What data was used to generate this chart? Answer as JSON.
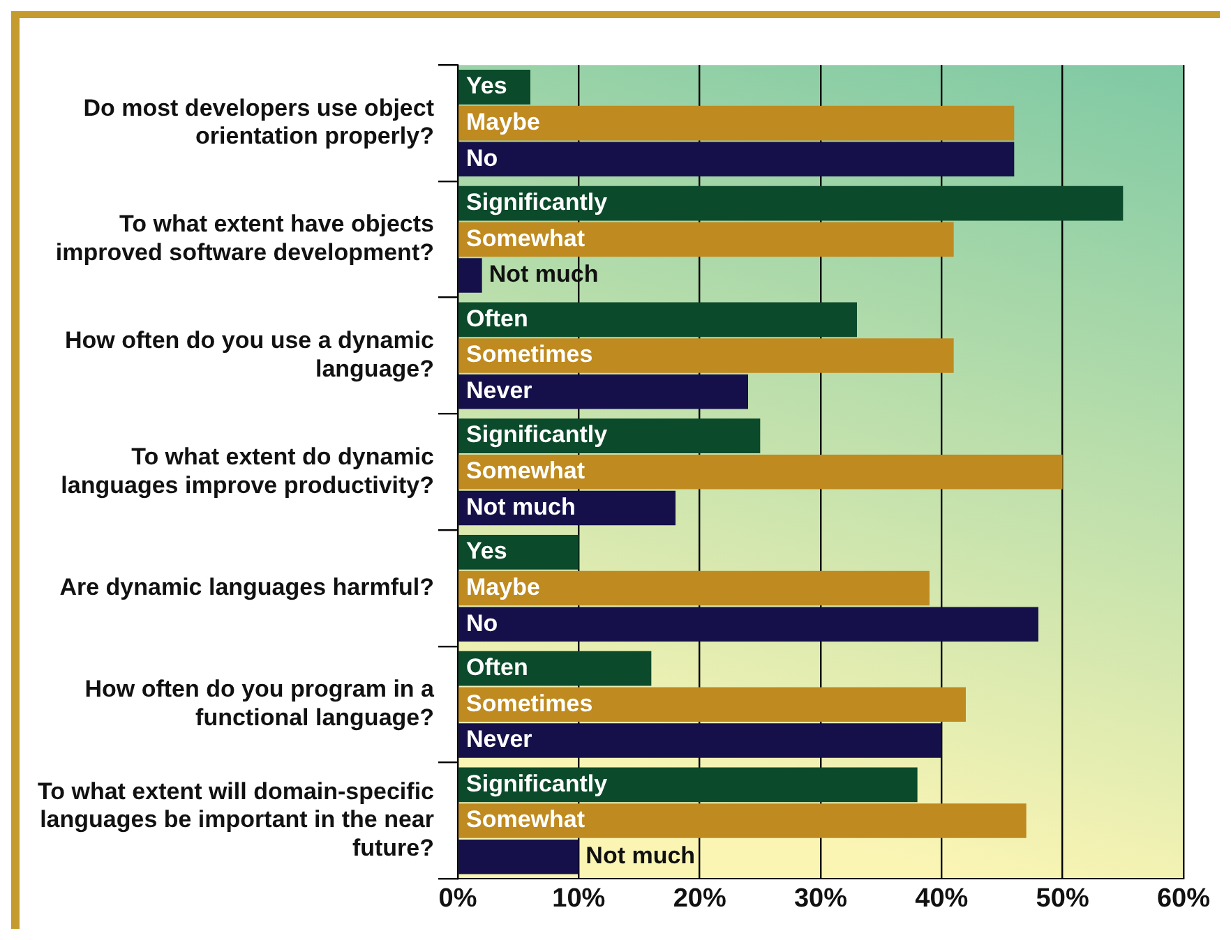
{
  "chart_data": {
    "type": "bar",
    "orientation": "horizontal",
    "categories": [
      "Do most developers use object orientation properly?",
      "To what extent have objects improved software development?",
      "How often do you use a dynamic language?",
      "To what extent do dynamic languages improve productivity?",
      "Are dynamic languages harmful?",
      "How often do you program in a functional language?",
      "To what extent will domain-specific languages be important in the near future?"
    ],
    "series": [
      {
        "color": "#0b4a2a",
        "values": [
          6,
          55,
          33,
          25,
          10,
          16,
          38
        ],
        "value_labels": [
          "Yes",
          "Significantly",
          "Often",
          "Significantly",
          "Yes",
          "Often",
          "Significantly"
        ]
      },
      {
        "color": "#bf8a1f",
        "values": [
          46,
          41,
          41,
          50,
          39,
          42,
          47
        ],
        "value_labels": [
          "Maybe",
          "Somewhat",
          "Sometimes",
          "Somewhat",
          "Maybe",
          "Sometimes",
          "Somewhat"
        ]
      },
      {
        "color": "#15104a",
        "values": [
          46,
          2,
          24,
          18,
          48,
          40,
          10
        ],
        "value_labels": [
          "No",
          "Not much",
          "Never",
          "Not much",
          "No",
          "Never",
          "Not much"
        ]
      }
    ],
    "xlim": [
      0,
      60
    ],
    "xticks": [
      {
        "value": 0,
        "label": "0%"
      },
      {
        "value": 10,
        "label": "10%"
      },
      {
        "value": 20,
        "label": "20%"
      },
      {
        "value": 30,
        "label": "30%"
      },
      {
        "value": 40,
        "label": "40%"
      },
      {
        "value": 50,
        "label": "50%"
      },
      {
        "value": 60,
        "label": "60%"
      }
    ],
    "grid": "x",
    "legend": false
  }
}
